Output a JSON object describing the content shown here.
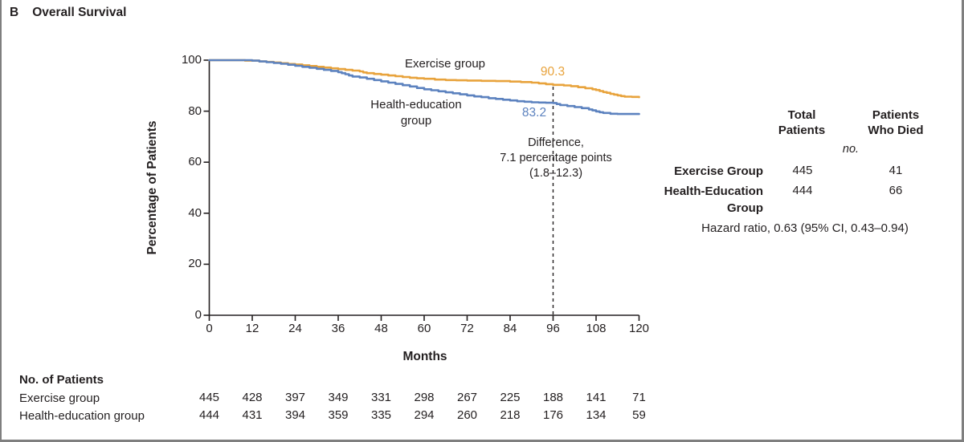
{
  "header": {
    "panel_label": "B",
    "title": "Overall Survival"
  },
  "chart_data": {
    "type": "line",
    "subtype": "kaplan-meier-step",
    "title": "Overall Survival",
    "xlabel": "Months",
    "ylabel": "Percentage of Patients",
    "xlim": [
      0,
      120
    ],
    "xticks": [
      0,
      12,
      24,
      36,
      48,
      60,
      72,
      84,
      96,
      108,
      120
    ],
    "ylim": [
      0,
      100
    ],
    "yticks": [
      0,
      20,
      40,
      60,
      80,
      100
    ],
    "grid": false,
    "axis_color": "#231f20",
    "series": [
      {
        "name": "Exercise group",
        "color": "#e8a33c",
        "value_label": "90.3",
        "value_at": 96,
        "points": [
          [
            0,
            100
          ],
          [
            8,
            100
          ],
          [
            10,
            99.8
          ],
          [
            13,
            99.8
          ],
          [
            14,
            99.5
          ],
          [
            16,
            99.3
          ],
          [
            18,
            99.1
          ],
          [
            20,
            98.8
          ],
          [
            22,
            98.5
          ],
          [
            24,
            98.3
          ],
          [
            26,
            98.0
          ],
          [
            28,
            97.7
          ],
          [
            30,
            97.4
          ],
          [
            32,
            97.1
          ],
          [
            34,
            96.8
          ],
          [
            36,
            96.5
          ],
          [
            38,
            96.2
          ],
          [
            40,
            95.9
          ],
          [
            42,
            95.6
          ],
          [
            43,
            95.2
          ],
          [
            44,
            94.9
          ],
          [
            46,
            94.6
          ],
          [
            48,
            94.3
          ],
          [
            50,
            94.0
          ],
          [
            52,
            93.7
          ],
          [
            54,
            93.4
          ],
          [
            56,
            93.1
          ],
          [
            58,
            92.9
          ],
          [
            60,
            92.7
          ],
          [
            63,
            92.4
          ],
          [
            66,
            92.2
          ],
          [
            69,
            92.1
          ],
          [
            72,
            92.0
          ],
          [
            76,
            91.9
          ],
          [
            80,
            91.8
          ],
          [
            84,
            91.6
          ],
          [
            87,
            91.4
          ],
          [
            90,
            91.2
          ],
          [
            92,
            90.9
          ],
          [
            94,
            90.6
          ],
          [
            96,
            90.3
          ],
          [
            99,
            90.1
          ],
          [
            101,
            89.8
          ],
          [
            103,
            89.4
          ],
          [
            105,
            89.0
          ],
          [
            107,
            88.6
          ],
          [
            108,
            88.3
          ],
          [
            109,
            87.9
          ],
          [
            110,
            87.5
          ],
          [
            111,
            87.2
          ],
          [
            112,
            86.8
          ],
          [
            113,
            86.5
          ],
          [
            114,
            86.2
          ],
          [
            115,
            85.9
          ],
          [
            116,
            85.7
          ],
          [
            118,
            85.6
          ],
          [
            120,
            85.5
          ]
        ]
      },
      {
        "name": "Health-education group",
        "color": "#5c82bf",
        "value_label": "83.2",
        "value_at": 96,
        "points": [
          [
            0,
            100
          ],
          [
            10,
            100
          ],
          [
            12,
            99.8
          ],
          [
            14,
            99.5
          ],
          [
            16,
            99.2
          ],
          [
            18,
            98.9
          ],
          [
            20,
            98.6
          ],
          [
            22,
            98.2
          ],
          [
            24,
            97.8
          ],
          [
            26,
            97.4
          ],
          [
            28,
            97.0
          ],
          [
            30,
            96.6
          ],
          [
            32,
            96.2
          ],
          [
            34,
            95.8
          ],
          [
            36,
            95.3
          ],
          [
            37,
            94.9
          ],
          [
            38,
            94.5
          ],
          [
            39,
            94.0
          ],
          [
            40,
            93.6
          ],
          [
            42,
            93.2
          ],
          [
            44,
            92.7
          ],
          [
            46,
            92.2
          ],
          [
            48,
            91.7
          ],
          [
            50,
            91.2
          ],
          [
            52,
            90.7
          ],
          [
            54,
            90.2
          ],
          [
            56,
            89.7
          ],
          [
            58,
            89.1
          ],
          [
            60,
            88.6
          ],
          [
            62,
            88.2
          ],
          [
            64,
            87.8
          ],
          [
            66,
            87.4
          ],
          [
            68,
            87.0
          ],
          [
            70,
            86.6
          ],
          [
            72,
            86.2
          ],
          [
            74,
            85.8
          ],
          [
            76,
            85.5
          ],
          [
            78,
            85.1
          ],
          [
            80,
            84.8
          ],
          [
            82,
            84.5
          ],
          [
            84,
            84.2
          ],
          [
            86,
            83.9
          ],
          [
            88,
            83.7
          ],
          [
            90,
            83.5
          ],
          [
            92,
            83.4
          ],
          [
            94,
            83.3
          ],
          [
            96,
            83.2
          ],
          [
            97,
            82.8
          ],
          [
            98,
            82.4
          ],
          [
            100,
            82.0
          ],
          [
            102,
            81.6
          ],
          [
            104,
            81.2
          ],
          [
            106,
            80.7
          ],
          [
            107,
            80.3
          ],
          [
            108,
            79.9
          ],
          [
            109,
            79.6
          ],
          [
            110,
            79.3
          ],
          [
            112,
            79.0
          ],
          [
            114,
            78.9
          ],
          [
            120,
            78.9
          ]
        ]
      }
    ],
    "annotation": {
      "lines": [
        "Difference,",
        "7.1 percentage points",
        "(1.8–12.3)"
      ],
      "dashed_line_x": 96
    },
    "legend_position": "in-plot labels"
  },
  "side_table": {
    "col_headers": [
      "Total Patients",
      "Patients Who Died"
    ],
    "unit_label": "no.",
    "rows": [
      {
        "label": "Exercise Group",
        "total": "445",
        "died": "41"
      },
      {
        "label": "Health-Education Group",
        "total": "444",
        "died": "66"
      }
    ],
    "hazard_text": "Hazard ratio, 0.63 (95% CI, 0.43–0.94)"
  },
  "risk_table": {
    "title": "No. of Patients",
    "rows": [
      {
        "label": "Exercise group",
        "values": [
          "445",
          "428",
          "397",
          "349",
          "331",
          "298",
          "267",
          "225",
          "188",
          "141",
          "71"
        ]
      },
      {
        "label": "Health-education group",
        "values": [
          "444",
          "431",
          "394",
          "359",
          "335",
          "294",
          "260",
          "218",
          "176",
          "134",
          "59"
        ]
      }
    ]
  }
}
